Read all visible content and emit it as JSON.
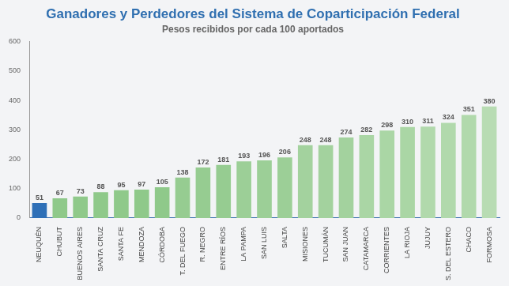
{
  "chart_data": {
    "type": "bar",
    "title": "Ganadores y Perdedores del Sistema de Coparticipación Federal",
    "subtitle": "Pesos recibidos por cada 100 aportados",
    "categories": [
      "NEUQUÉN",
      "CHUBUT",
      "BUENOS AIRES",
      "SANTA CRUZ",
      "SANTA FE",
      "MENDOZA",
      "CÓRDOBA",
      "T. DEL FUEGO",
      "R. NEGRO",
      "ENTRE RÍOS",
      "LA PAMPA",
      "SAN LUIS",
      "SALTA",
      "MISIONES",
      "TUCUMÁN",
      "SAN JUAN",
      "CATAMARCA",
      "CORRIENTES",
      "LA RIOJA",
      "JUJUY",
      "S. DEL ESTERO",
      "CHACO",
      "FORMOSA"
    ],
    "values": [
      51,
      67,
      73,
      88,
      95,
      97,
      105,
      138,
      172,
      181,
      193,
      196,
      206,
      248,
      248,
      274,
      282,
      298,
      310,
      311,
      324,
      351,
      380
    ],
    "colors": [
      "#2e6fb7",
      "#8fc98a",
      "#8fc98a",
      "#8fc98a",
      "#8fc98a",
      "#8fc98a",
      "#8fc98a",
      "#96cc91",
      "#96cc91",
      "#96cc91",
      "#9ccf97",
      "#9ccf97",
      "#9ccf97",
      "#a3d29e",
      "#a3d29e",
      "#a3d29e",
      "#aad6a5",
      "#aad6a5",
      "#aad6a5",
      "#b1d9ac",
      "#b1d9ac",
      "#b1d9ac",
      "#b8dcb3"
    ],
    "ylim": [
      0,
      600
    ],
    "yticks": [
      0,
      100,
      200,
      300,
      400,
      500,
      600
    ],
    "grid": false,
    "data_labels": true
  }
}
